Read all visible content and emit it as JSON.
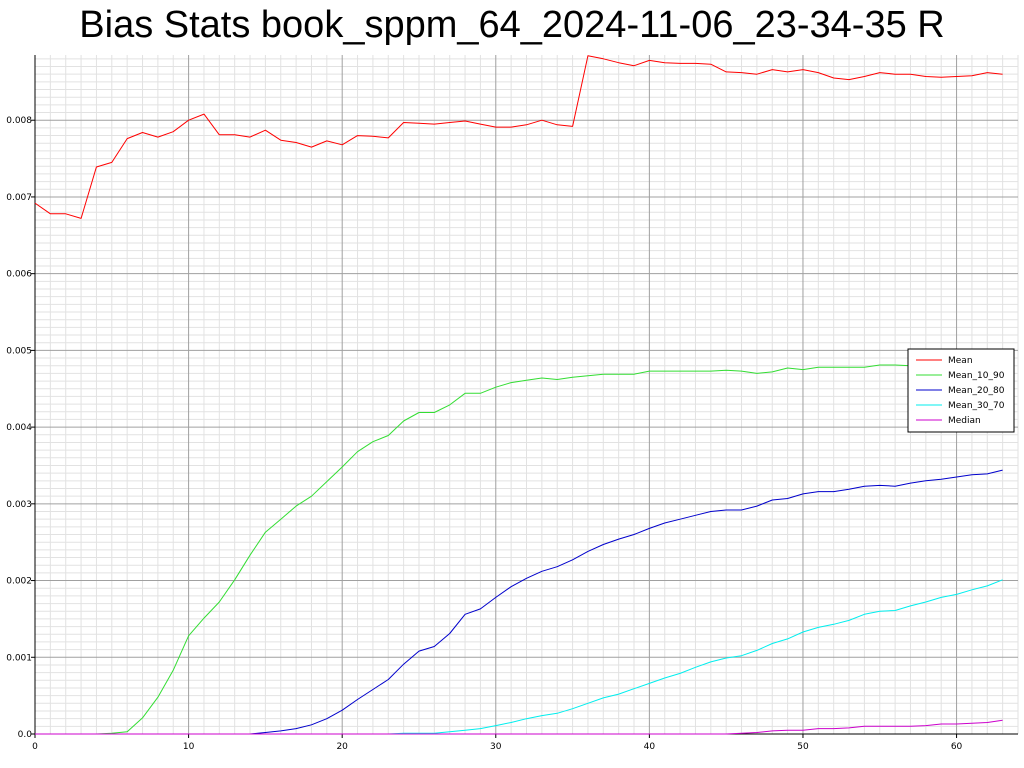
{
  "chart_data": {
    "type": "line",
    "title": "Bias Stats book_sppm_64_2024-11-06_23-34-35 R",
    "xlabel": "",
    "ylabel": "",
    "xlim": [
      0,
      64
    ],
    "ylim": [
      0,
      0.00885
    ],
    "grid": true,
    "legend_position": "right",
    "x_ticks": [
      "0",
      "10",
      "20",
      "30",
      "40",
      "50",
      "60"
    ],
    "y_ticks": [
      "0.0",
      "0.001",
      "0.002",
      "0.003",
      "0.004",
      "0.005",
      "0.006",
      "0.007",
      "0.008"
    ],
    "x": [
      0,
      1,
      2,
      3,
      4,
      5,
      6,
      7,
      8,
      9,
      10,
      11,
      12,
      13,
      14,
      15,
      16,
      17,
      18,
      19,
      20,
      21,
      22,
      23,
      24,
      25,
      26,
      27,
      28,
      29,
      30,
      31,
      32,
      33,
      34,
      35,
      36,
      37,
      38,
      39,
      40,
      41,
      42,
      43,
      44,
      45,
      46,
      47,
      48,
      49,
      50,
      51,
      52,
      53,
      54,
      55,
      56,
      57,
      58,
      59,
      60,
      61,
      62,
      63
    ],
    "series": [
      {
        "name": "Mean",
        "color": "#ff0000",
        "values": [
          0.00692,
          0.00678,
          0.00678,
          0.00672,
          0.00739,
          0.00745,
          0.00776,
          0.00784,
          0.00778,
          0.00785,
          0.008,
          0.00808,
          0.00781,
          0.00781,
          0.00778,
          0.00787,
          0.00774,
          0.00771,
          0.00765,
          0.00773,
          0.00768,
          0.0078,
          0.00779,
          0.00777,
          0.00797,
          0.00796,
          0.00795,
          0.00797,
          0.00799,
          0.00795,
          0.00791,
          0.00791,
          0.00794,
          0.008,
          0.00794,
          0.00792,
          0.00884,
          0.0088,
          0.00875,
          0.00871,
          0.00878,
          0.00875,
          0.00874,
          0.00874,
          0.00873,
          0.00863,
          0.00862,
          0.0086,
          0.00866,
          0.00863,
          0.00866,
          0.00862,
          0.00855,
          0.00853,
          0.00857,
          0.00862,
          0.0086,
          0.0086,
          0.00857,
          0.00856,
          0.00857,
          0.00858,
          0.00862,
          0.0086
        ]
      },
      {
        "name": "Mean_10_90",
        "color": "#33dd33",
        "values": [
          0,
          0,
          0,
          0,
          0,
          1e-05,
          3e-05,
          0.00021,
          0.00048,
          0.00083,
          0.00128,
          0.00151,
          0.00172,
          0.00201,
          0.00233,
          0.00263,
          0.0028,
          0.00297,
          0.0031,
          0.00329,
          0.00348,
          0.00368,
          0.00381,
          0.00389,
          0.00408,
          0.00419,
          0.00419,
          0.00429,
          0.00444,
          0.00444,
          0.00452,
          0.00458,
          0.00461,
          0.00464,
          0.00462,
          0.00465,
          0.00467,
          0.00469,
          0.00469,
          0.00469,
          0.00473,
          0.00473,
          0.00473,
          0.00473,
          0.00473,
          0.00474,
          0.00473,
          0.0047,
          0.00472,
          0.00477,
          0.00475,
          0.00478,
          0.00478,
          0.00478,
          0.00478,
          0.00481,
          0.00481,
          0.0048,
          0.00481,
          0.00483,
          0.00485,
          0.00487,
          0.00491,
          0.00496
        ]
      },
      {
        "name": "Mean_20_80",
        "color": "#0000cc",
        "values": [
          0,
          0,
          0,
          0,
          0,
          0,
          0,
          0,
          0,
          0,
          0,
          0,
          0,
          0,
          0,
          2e-05,
          4e-05,
          7e-05,
          0.00012,
          0.0002,
          0.00031,
          0.00045,
          0.00058,
          0.00071,
          0.00091,
          0.00108,
          0.00114,
          0.00131,
          0.00156,
          0.00163,
          0.00178,
          0.00192,
          0.00203,
          0.00212,
          0.00218,
          0.00227,
          0.00238,
          0.00247,
          0.00254,
          0.0026,
          0.00268,
          0.00275,
          0.0028,
          0.00285,
          0.0029,
          0.00292,
          0.00292,
          0.00297,
          0.00305,
          0.00307,
          0.00313,
          0.00316,
          0.00316,
          0.00319,
          0.00323,
          0.00324,
          0.00323,
          0.00327,
          0.0033,
          0.00332,
          0.00335,
          0.00338,
          0.00339,
          0.00344
        ]
      },
      {
        "name": "Mean_30_70",
        "color": "#00eeee",
        "values": [
          0,
          0,
          0,
          0,
          0,
          0,
          0,
          0,
          0,
          0,
          0,
          0,
          0,
          0,
          0,
          0,
          0,
          0,
          0,
          0,
          0,
          0,
          0,
          0,
          1e-05,
          1e-05,
          1e-05,
          3e-05,
          5e-05,
          7e-05,
          0.00011,
          0.00015,
          0.0002,
          0.00024,
          0.00027,
          0.00033,
          0.0004,
          0.00047,
          0.00052,
          0.00059,
          0.00066,
          0.00073,
          0.00079,
          0.00087,
          0.00094,
          0.00099,
          0.00102,
          0.00109,
          0.00118,
          0.00124,
          0.00133,
          0.00139,
          0.00143,
          0.00148,
          0.00156,
          0.0016,
          0.00161,
          0.00167,
          0.00172,
          0.00178,
          0.00182,
          0.00188,
          0.00193,
          0.00201
        ]
      },
      {
        "name": "Median",
        "color": "#cc00cc",
        "values": [
          0,
          0,
          0,
          0,
          0,
          0,
          0,
          0,
          0,
          0,
          0,
          0,
          0,
          0,
          0,
          0,
          0,
          0,
          0,
          0,
          0,
          0,
          0,
          0,
          0,
          0,
          0,
          0,
          0,
          0,
          0,
          0,
          0,
          0,
          0,
          0,
          0,
          0,
          0,
          0,
          0,
          0,
          0,
          0,
          0,
          0,
          1e-05,
          2e-05,
          4e-05,
          5e-05,
          5e-05,
          7e-05,
          7e-05,
          8e-05,
          0.0001,
          0.0001,
          0.0001,
          0.0001,
          0.00011,
          0.00013,
          0.00013,
          0.00014,
          0.00015,
          0.00018
        ]
      }
    ]
  }
}
